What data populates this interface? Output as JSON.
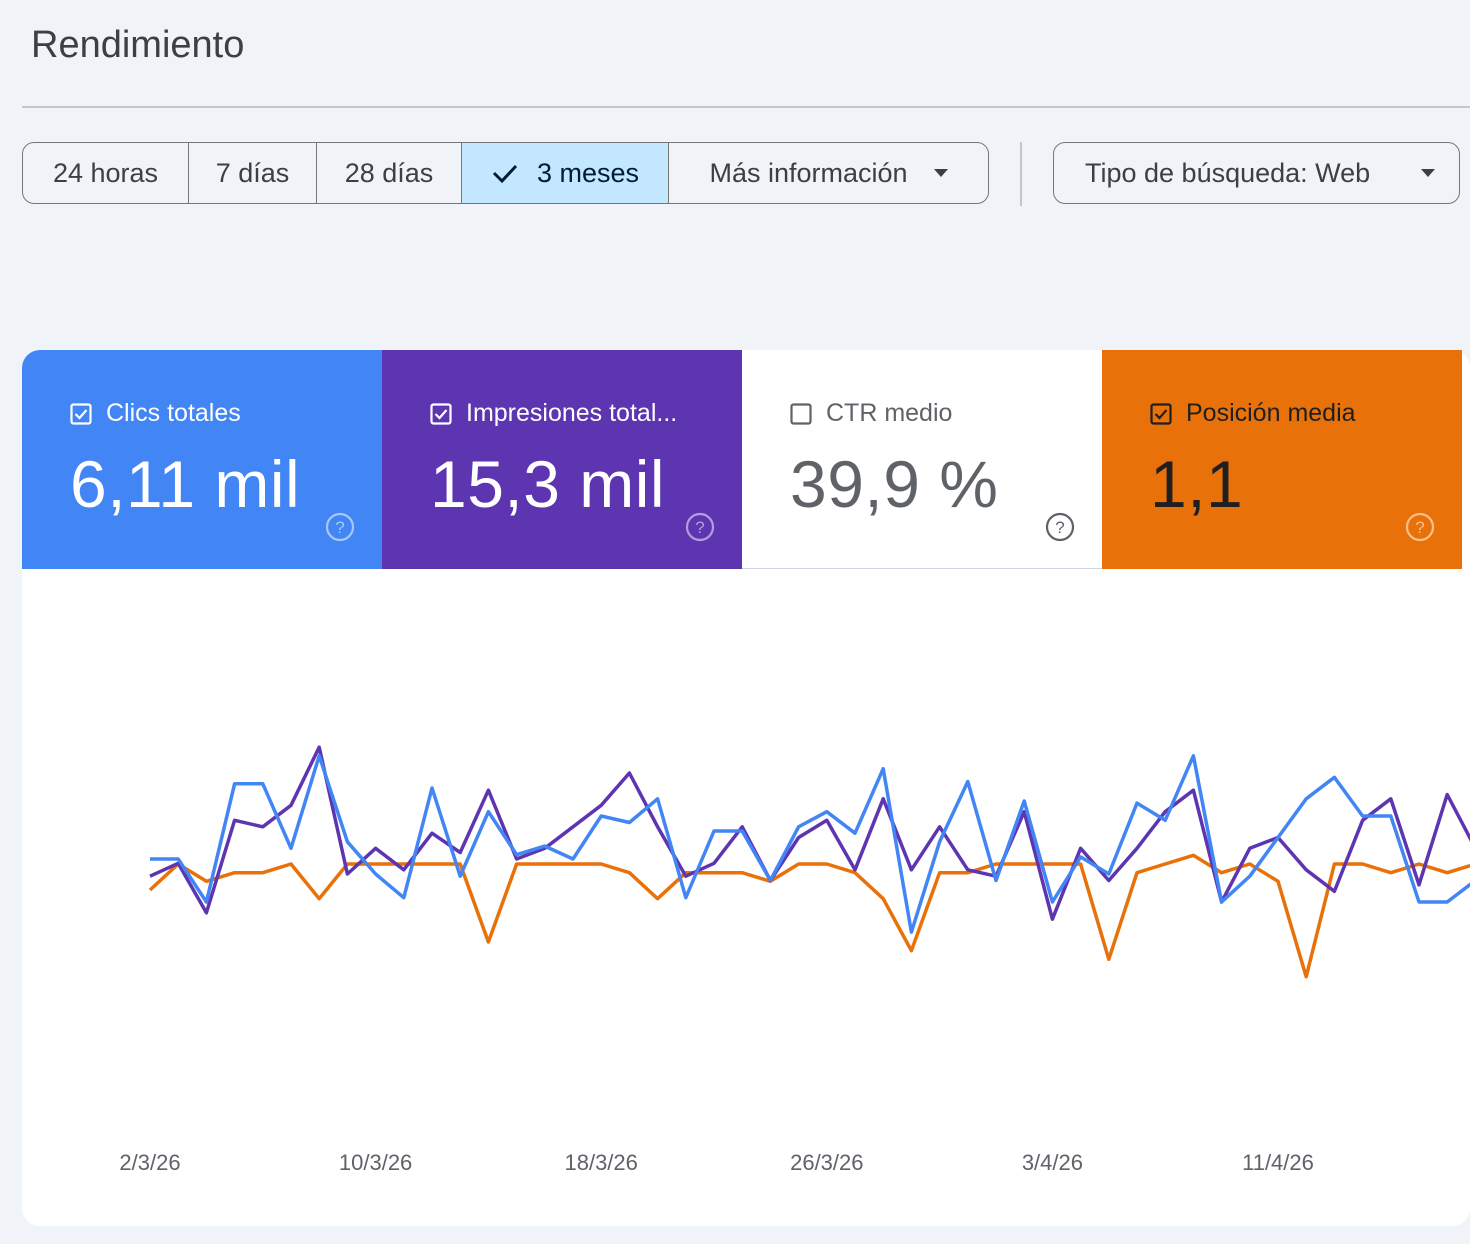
{
  "page_title": "Rendimiento",
  "date_range": {
    "options": [
      "24 horas",
      "7 días",
      "28 días",
      "3 meses"
    ],
    "selected": "3 meses",
    "more_label": "Más información"
  },
  "search_type_label": "Tipo de búsqueda: Web",
  "metrics": [
    {
      "label": "Clics totales",
      "value": "6,11 mil",
      "checked": true,
      "color": "#4285f4"
    },
    {
      "label": "Impresiones total...",
      "value": "15,3 mil",
      "checked": true,
      "color": "#5e35b1"
    },
    {
      "label": "CTR medio",
      "value": "39,9 %",
      "checked": false,
      "color": "#ffffff"
    },
    {
      "label": "Posición media",
      "value": "1,1",
      "checked": true,
      "color": "#e8710a"
    }
  ],
  "icons": [
    "check-icon",
    "dropdown-arrow-icon",
    "checkbox-icon",
    "help-icon"
  ],
  "chart_data": {
    "type": "line",
    "x_tick_labels": [
      "2/3/26",
      "10/3/26",
      "18/3/26",
      "26/3/26",
      "3/4/26",
      "11/4/26"
    ],
    "x_start": "2/3/26",
    "y_axis_visible": false,
    "grid": false,
    "series": [
      {
        "name": "Clics totales",
        "color": "#4285f4",
        "values": [
          40,
          40,
          20,
          75,
          75,
          45,
          88,
          48,
          33,
          22,
          73,
          32,
          62,
          42,
          46,
          40,
          60,
          57,
          68,
          22,
          53,
          53,
          30,
          55,
          62,
          52,
          82,
          6,
          48,
          76,
          30,
          67,
          20,
          41,
          33,
          66,
          58,
          88,
          20,
          32,
          50,
          68,
          78,
          60,
          60,
          20,
          20,
          30,
          55
        ]
      },
      {
        "name": "Impresiones totales",
        "color": "#5e35b1",
        "values": [
          32,
          38,
          15,
          58,
          55,
          65,
          92,
          33,
          45,
          35,
          52,
          43,
          72,
          40,
          45,
          55,
          65,
          80,
          55,
          32,
          38,
          55,
          30,
          50,
          58,
          35,
          68,
          35,
          55,
          35,
          32,
          62,
          12,
          45,
          30,
          45,
          62,
          72,
          20,
          45,
          50,
          35,
          25,
          58,
          68,
          28,
          70,
          45,
          35
        ]
      },
      {
        "name": "Posición media",
        "color": "#e8710a",
        "values": [
          1.15,
          1.12,
          1.14,
          1.13,
          1.13,
          1.12,
          1.16,
          1.12,
          1.12,
          1.12,
          1.12,
          1.12,
          1.21,
          1.12,
          1.12,
          1.12,
          1.12,
          1.13,
          1.16,
          1.13,
          1.13,
          1.13,
          1.14,
          1.12,
          1.12,
          1.13,
          1.16,
          1.22,
          1.13,
          1.13,
          1.12,
          1.12,
          1.12,
          1.12,
          1.23,
          1.13,
          1.12,
          1.11,
          1.13,
          1.12,
          1.14,
          1.25,
          1.12,
          1.12,
          1.13,
          1.12,
          1.13,
          1.12,
          1.12
        ]
      }
    ]
  }
}
